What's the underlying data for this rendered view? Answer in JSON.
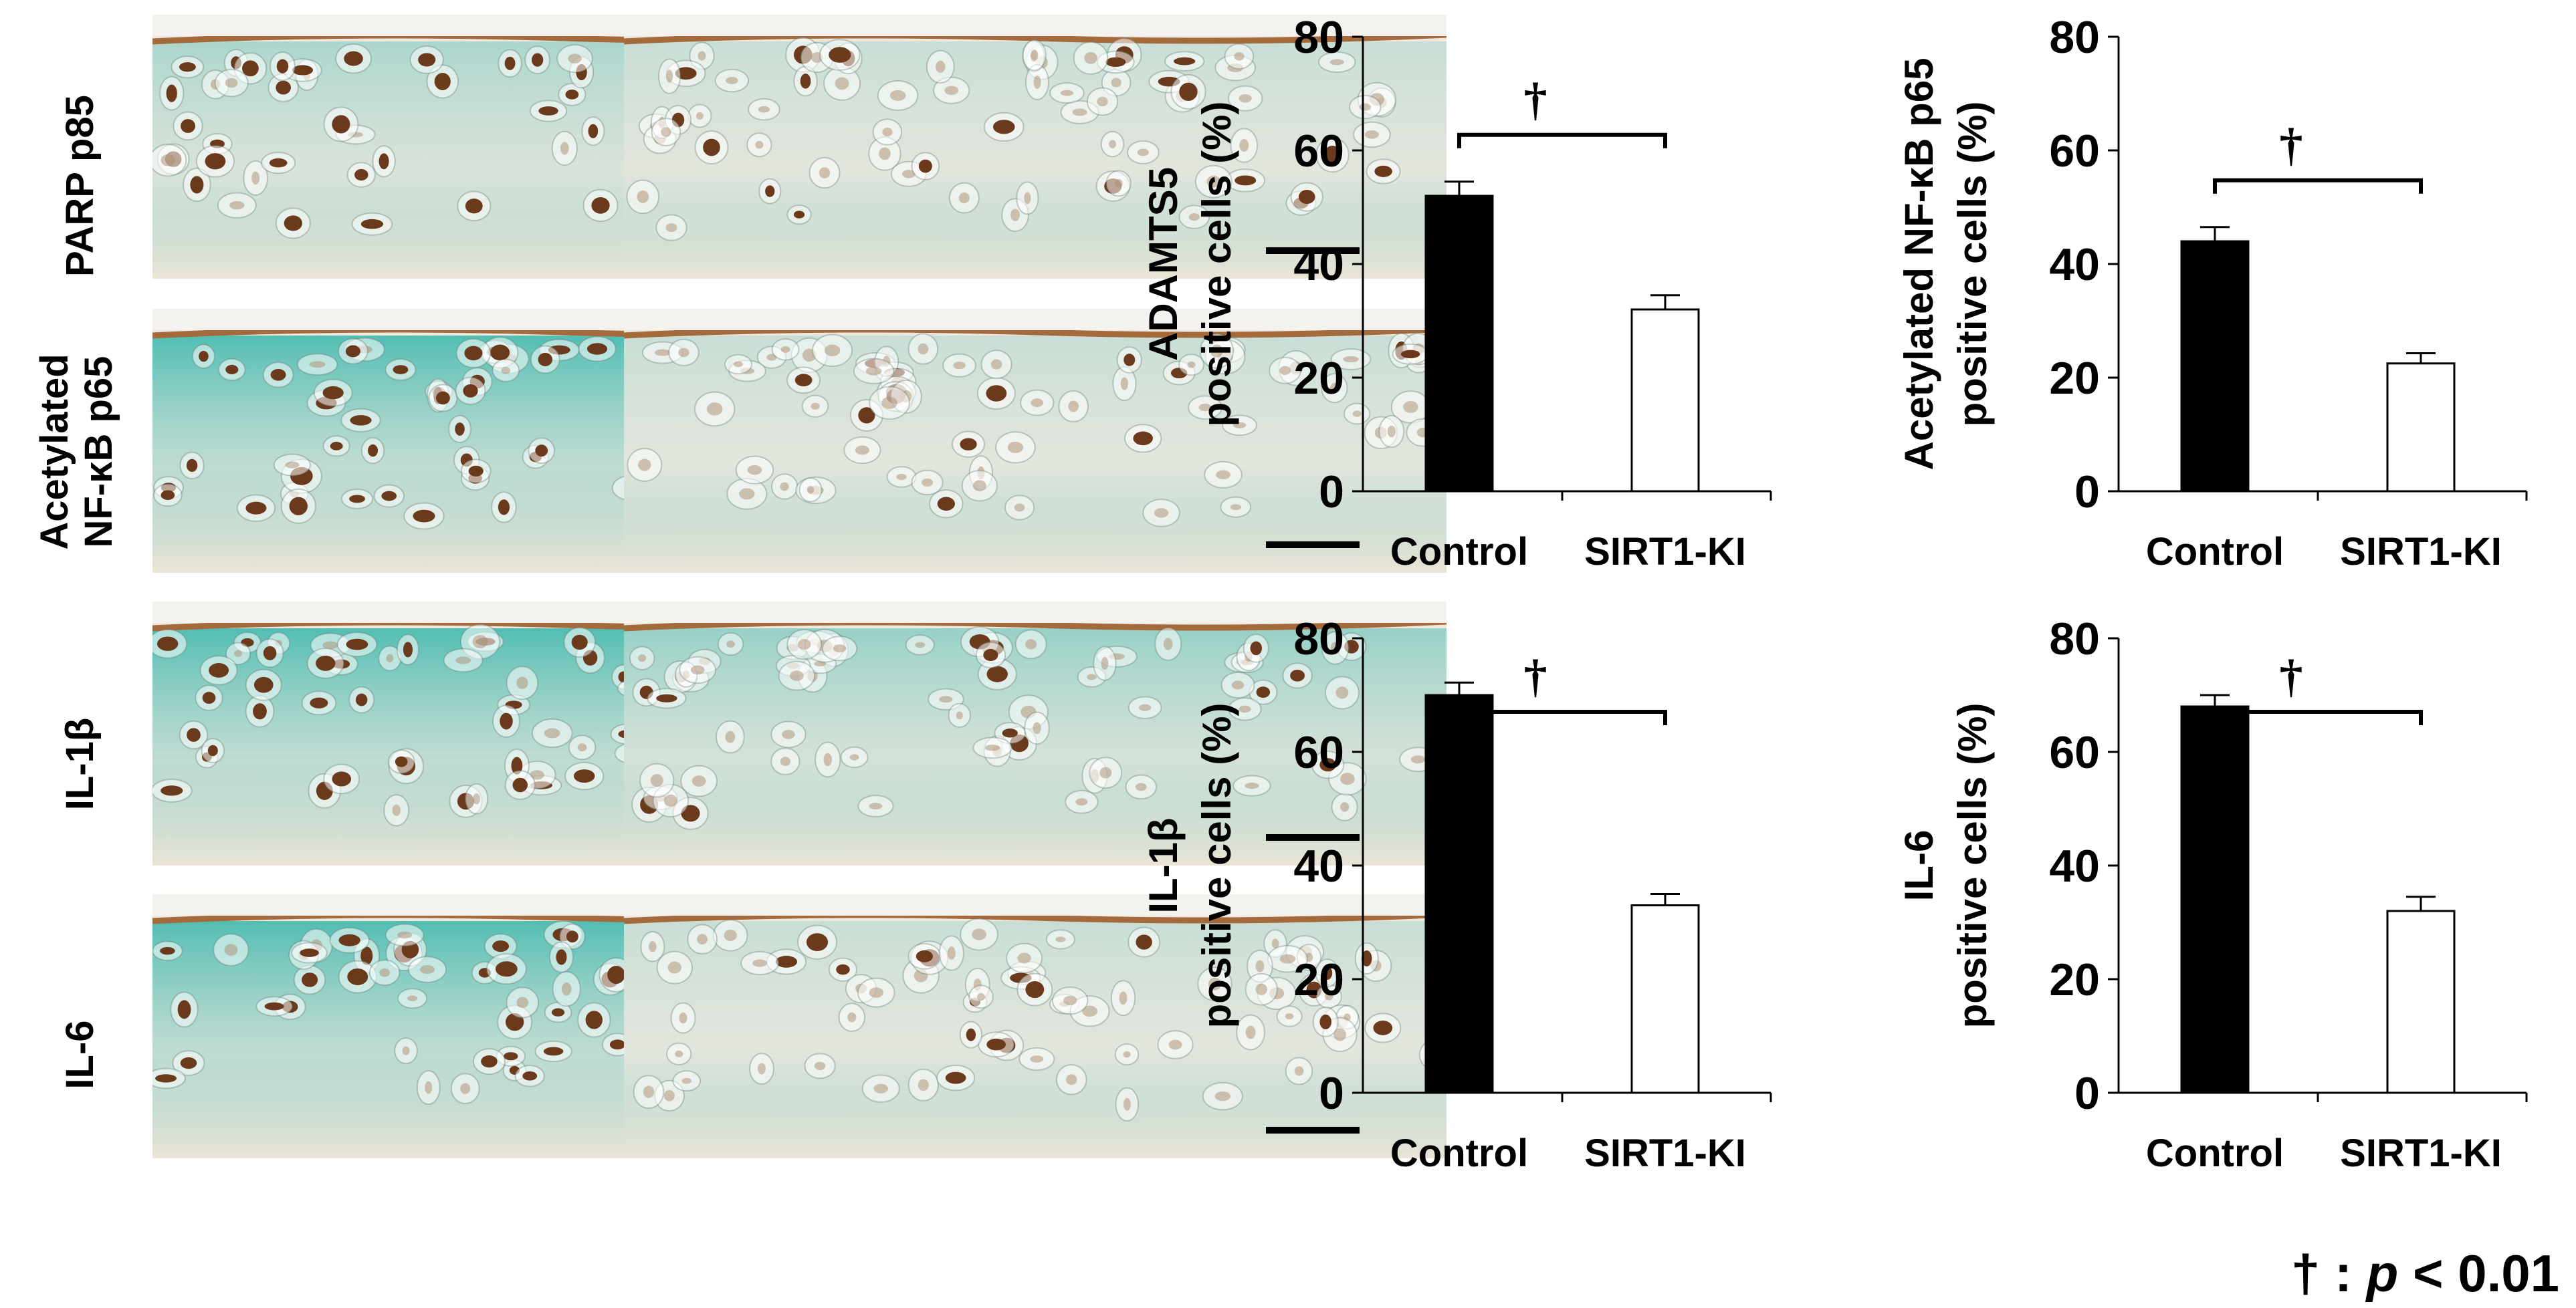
{
  "row_labels": [
    [
      "PARP p85"
    ],
    [
      "Acetylated",
      "NF-κB p65"
    ],
    [
      "IL-1β"
    ],
    [
      "IL-6"
    ]
  ],
  "footnote": {
    "symbol": "†",
    "sep": " : ",
    "var": "p",
    "rest": " < 0.01"
  },
  "colors": {
    "control_bar": "#000000",
    "sirt1_bar": "#ffffff",
    "stain_brown": "#6b3a1c",
    "stain_green": "#2bb3a8"
  },
  "chart_data": [
    {
      "type": "bar",
      "ylabel": [
        "ADAMTS5",
        "positive cells (%)"
      ],
      "categories": [
        "Control",
        "SIRT1-KI"
      ],
      "values": [
        52,
        32
      ],
      "errors": [
        2.5,
        2.5
      ],
      "ylim": [
        0,
        80
      ],
      "yticks": [
        0,
        20,
        40,
        60,
        80
      ],
      "significance": "†",
      "grid": false
    },
    {
      "type": "bar",
      "ylabel": [
        "Acetylated NF-κB p65",
        "positive cells (%)"
      ],
      "categories": [
        "Control",
        "SIRT1-KI"
      ],
      "values": [
        44,
        22.5
      ],
      "errors": [
        2.5,
        1.8
      ],
      "ylim": [
        0,
        80
      ],
      "yticks": [
        0,
        20,
        40,
        60,
        80
      ],
      "significance": "†",
      "grid": false
    },
    {
      "type": "bar",
      "ylabel": [
        "IL-1β",
        "positive cells (%)"
      ],
      "categories": [
        "Control",
        "SIRT1-KI"
      ],
      "values": [
        70,
        33
      ],
      "errors": [
        2.2,
        2.0
      ],
      "ylim": [
        0,
        80
      ],
      "yticks": [
        0,
        20,
        40,
        60,
        80
      ],
      "significance": "†",
      "grid": false
    },
    {
      "type": "bar",
      "ylabel": [
        "IL-6",
        "positive cells (%)"
      ],
      "categories": [
        "Control",
        "SIRT1-KI"
      ],
      "values": [
        68,
        32
      ],
      "errors": [
        2.0,
        2.5
      ],
      "ylim": [
        0,
        80
      ],
      "yticks": [
        0,
        20,
        40,
        60,
        80
      ],
      "significance": "†",
      "grid": false
    }
  ]
}
